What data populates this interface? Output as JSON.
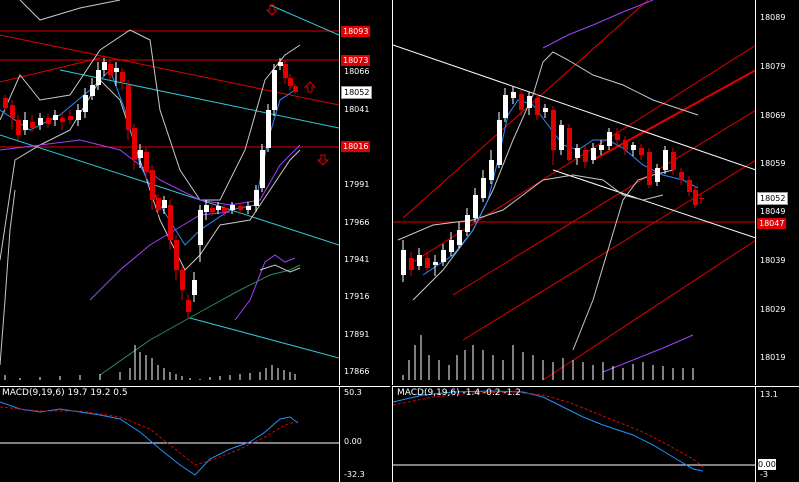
{
  "colors": {
    "background": "#000000",
    "bull": "#ffffff",
    "bear": "#e00000",
    "band": "#c8c8c8",
    "ma_fast": "#2a8cff",
    "ma_mid": "#a040ff",
    "channel": "#2fc8d8",
    "level": "#e00000",
    "macd_line": "#1e90ff",
    "macd_signal": "#e00000"
  },
  "left_chart": {
    "y_ticks": [
      "17866",
      "17891",
      "17916",
      "17941",
      "17966",
      "17991",
      "18041",
      "18066"
    ],
    "price_tags": [
      {
        "label": "18093",
        "style": "red"
      },
      {
        "label": "18073",
        "style": "red"
      },
      {
        "label": "18052",
        "style": "white"
      },
      {
        "label": "18016",
        "style": "red"
      }
    ],
    "arrow_icons": [
      "arrow-down-icon",
      "arrow-up-icon",
      "arrow-down-icon"
    ],
    "macd_label": "MACD(9,19,6) 19.7 19.2 0.5",
    "macd_ticks": [
      "50.3",
      "0.00",
      "-32.3"
    ]
  },
  "right_chart": {
    "y_ticks": [
      "18089",
      "18079",
      "18069",
      "18059",
      "18049",
      "18039",
      "18029",
      "18019"
    ],
    "price_tags": [
      {
        "label": "18052",
        "style": "white"
      },
      {
        "label": "18047",
        "style": "red"
      }
    ],
    "macd_label": "MACD(9,19,6) -1.4 -0.2 -1.2",
    "macd_ticks": [
      "13.1",
      "0.00",
      "-3"
    ]
  }
}
